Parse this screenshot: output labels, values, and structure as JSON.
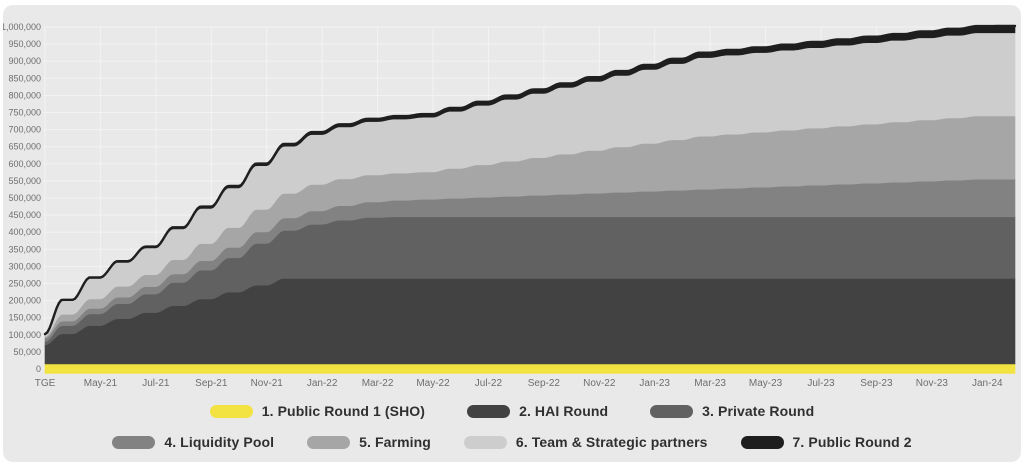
{
  "page": {
    "background": "#ffffff",
    "card_background": "#e9e9e9",
    "grid_color": "#f3f3f3",
    "axis_text_color": "#6e6e6e",
    "legend_text_color": "#303030",
    "top_line_color": "#1f1f1f"
  },
  "chart_data": {
    "type": "area",
    "stacked": true,
    "title": "",
    "xlabel": "",
    "ylabel": "",
    "grid": true,
    "legend_position": "bottom",
    "y_min": 0,
    "y_max": 1000000,
    "y_step": 50000,
    "y_tick_labels": [
      "0",
      "50,000",
      "100,000",
      "150,000",
      "200,000",
      "250,000",
      "300,000",
      "350,000",
      "400,000",
      "450,000",
      "500,000",
      "550,000",
      "600,000",
      "650,000",
      "700,000",
      "750,000",
      "800,000",
      "850,000",
      "900,000",
      "950,000",
      "1,000,000"
    ],
    "x_tick_labels": [
      "TGE",
      "May-21",
      "Jul-21",
      "Sep-21",
      "Nov-21",
      "Jan-22",
      "Mar-22",
      "May-22",
      "Jul-22",
      "Sep-22",
      "Nov-22",
      "Jan-23",
      "Mar-23",
      "May-23",
      "Jul-23",
      "Sep-23",
      "Nov-23",
      "Jan-24"
    ],
    "months_per_tick": 2,
    "points_per_series": 36,
    "legend_rows": [
      [
        0,
        1,
        2
      ],
      [
        3,
        4,
        5,
        6
      ]
    ],
    "series": [
      {
        "name": "1. Public Round 1 (SHO)",
        "color": "#f2e343",
        "values": [
          15000,
          15000,
          15000,
          15000,
          15000,
          15000,
          15000,
          15000,
          15000,
          15000,
          15000,
          15000,
          15000,
          15000,
          15000,
          15000,
          15000,
          15000,
          15000,
          15000,
          15000,
          15000,
          15000,
          15000,
          15000,
          15000,
          15000,
          15000,
          15000,
          15000,
          15000,
          15000,
          15000,
          15000,
          15000,
          15000
        ]
      },
      {
        "name": "2. HAI Round",
        "color": "#424242",
        "values": [
          55000,
          88000,
          112000,
          132000,
          150000,
          170000,
          190000,
          210000,
          230000,
          250000,
          250000,
          250000,
          250000,
          250000,
          250000,
          250000,
          250000,
          250000,
          250000,
          250000,
          250000,
          250000,
          250000,
          250000,
          250000,
          250000,
          250000,
          250000,
          250000,
          250000,
          250000,
          250000,
          250000,
          250000,
          250000,
          250000
        ]
      },
      {
        "name": "3. Private Round",
        "color": "#616161",
        "values": [
          10000,
          24000,
          34000,
          44000,
          54000,
          68000,
          84000,
          100000,
          122000,
          140000,
          158000,
          170000,
          178000,
          180000,
          180000,
          180000,
          180000,
          180000,
          180000,
          180000,
          180000,
          180000,
          180000,
          180000,
          180000,
          180000,
          180000,
          180000,
          180000,
          180000,
          180000,
          180000,
          180000,
          180000,
          180000,
          180000
        ]
      },
      {
        "name": "4. Liquidity Pool",
        "color": "#828282",
        "values": [
          10000,
          12940,
          15880,
          18820,
          21760,
          24700,
          27640,
          30580,
          33520,
          36460,
          39400,
          42340,
          45280,
          48220,
          51160,
          54100,
          57040,
          59980,
          62920,
          65860,
          68800,
          71740,
          74680,
          77620,
          80560,
          83500,
          86440,
          89380,
          92320,
          95260,
          98200,
          101140,
          104080,
          107020,
          110000,
          110000
        ]
      },
      {
        "name": "5. Farming",
        "color": "#a6a6a6",
        "values": [
          5000,
          20000,
          28000,
          32000,
          35000,
          42000,
          50000,
          58000,
          66000,
          72000,
          77000,
          78500,
          79000,
          79500,
          80000,
          87500,
          95000,
          102500,
          110000,
          117500,
          125000,
          132500,
          140000,
          147500,
          155000,
          158000,
          161000,
          164000,
          167000,
          170000,
          173000,
          176000,
          179000,
          182000,
          185000,
          185000
        ]
      },
      {
        "name": "6. Team & Strategic partners",
        "color": "#cdcdcd",
        "values": [
          5000,
          40000,
          60000,
          70000,
          78000,
          90000,
          103000,
          116000,
          128000,
          138000,
          146000,
          152000,
          156000,
          158000,
          160000,
          167000,
          174000,
          181000,
          188000,
          195000,
          202000,
          209000,
          216000,
          223000,
          230000,
          231300,
          232600,
          233900,
          235200,
          236500,
          237800,
          239100,
          240400,
          241700,
          243000,
          243000
        ]
      },
      {
        "name": "7. Public Round 2",
        "color": "#1e1e1e",
        "values": [
          2000,
          2500,
          3000,
          3500,
          4000,
          4600,
          5100,
          5600,
          6100,
          6600,
          7200,
          7700,
          8200,
          8700,
          9200,
          9700,
          10300,
          10800,
          11300,
          11800,
          12300,
          12900,
          13400,
          13900,
          14400,
          14900,
          15400,
          16000,
          16500,
          17000,
          17500,
          18000,
          18600,
          19100,
          19600,
          20000
        ]
      }
    ]
  }
}
